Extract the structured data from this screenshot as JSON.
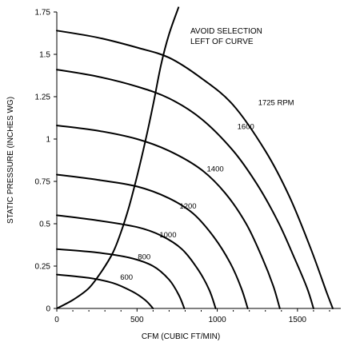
{
  "chart_data": {
    "type": "line",
    "title": "",
    "xlabel": "CFM (CUBIC FT/MIN)",
    "ylabel": "STATIC PRESSURE (INCHES WG)",
    "xlim": [
      0,
      1770
    ],
    "ylim": [
      0,
      1.75
    ],
    "x_ticks": [
      0,
      500,
      1000,
      1500
    ],
    "y_ticks": [
      0,
      0.25,
      0.5,
      0.75,
      1,
      1.25,
      1.5,
      1.75
    ],
    "y_tick_labels": [
      "0",
      "0.25",
      "0.5",
      "0.75",
      "1",
      "1.25",
      "1.5",
      "1.75"
    ],
    "x_minor_ticks": [
      100,
      200,
      300,
      400,
      600,
      700,
      800,
      900,
      1100,
      1200,
      1300,
      1400,
      1600,
      1700
    ],
    "grid": false,
    "legend": "none",
    "colors": {
      "line": "#000000",
      "background": "#ffffff"
    },
    "annotation": [
      "AVOID SELECTION",
      "LEFT OF CURVE"
    ],
    "series": [
      {
        "name": "1725 RPM",
        "points": [
          [
            0,
            1.64
          ],
          [
            250,
            1.6
          ],
          [
            500,
            1.54
          ],
          [
            700,
            1.48
          ],
          [
            900,
            1.36
          ],
          [
            1100,
            1.2
          ],
          [
            1300,
            0.93
          ],
          [
            1450,
            0.66
          ],
          [
            1580,
            0.36
          ],
          [
            1680,
            0.1
          ],
          [
            1720,
            0
          ]
        ]
      },
      {
        "name": "1600",
        "points": [
          [
            0,
            1.41
          ],
          [
            250,
            1.37
          ],
          [
            500,
            1.31
          ],
          [
            700,
            1.24
          ],
          [
            900,
            1.12
          ],
          [
            1100,
            0.93
          ],
          [
            1250,
            0.73
          ],
          [
            1380,
            0.51
          ],
          [
            1480,
            0.3
          ],
          [
            1560,
            0.12
          ],
          [
            1600,
            0
          ]
        ]
      },
      {
        "name": "1400",
        "points": [
          [
            0,
            1.08
          ],
          [
            250,
            1.05
          ],
          [
            500,
            1.0
          ],
          [
            700,
            0.93
          ],
          [
            900,
            0.82
          ],
          [
            1050,
            0.68
          ],
          [
            1180,
            0.5
          ],
          [
            1280,
            0.3
          ],
          [
            1350,
            0.13
          ],
          [
            1390,
            0
          ]
        ]
      },
      {
        "name": "1200",
        "points": [
          [
            0,
            0.79
          ],
          [
            250,
            0.76
          ],
          [
            500,
            0.72
          ],
          [
            700,
            0.65
          ],
          [
            850,
            0.56
          ],
          [
            980,
            0.42
          ],
          [
            1080,
            0.27
          ],
          [
            1150,
            0.12
          ],
          [
            1190,
            0
          ]
        ]
      },
      {
        "name": "1000",
        "points": [
          [
            0,
            0.55
          ],
          [
            250,
            0.52
          ],
          [
            500,
            0.48
          ],
          [
            650,
            0.43
          ],
          [
            780,
            0.35
          ],
          [
            880,
            0.23
          ],
          [
            950,
            0.11
          ],
          [
            990,
            0
          ]
        ]
      },
      {
        "name": "800",
        "points": [
          [
            0,
            0.35
          ],
          [
            250,
            0.33
          ],
          [
            450,
            0.3
          ],
          [
            600,
            0.25
          ],
          [
            700,
            0.17
          ],
          [
            760,
            0.08
          ],
          [
            795,
            0
          ]
        ]
      },
      {
        "name": "600",
        "points": [
          [
            0,
            0.2
          ],
          [
            200,
            0.18
          ],
          [
            350,
            0.15
          ],
          [
            470,
            0.1
          ],
          [
            550,
            0.05
          ],
          [
            600,
            0
          ]
        ]
      }
    ],
    "series_label_anchors": [
      [
        1255,
        1.2
      ],
      [
        1125,
        1.06
      ],
      [
        935,
        0.81
      ],
      [
        765,
        0.59
      ],
      [
        640,
        0.42
      ],
      [
        505,
        0.29
      ],
      [
        395,
        0.17
      ]
    ],
    "selection_curve": {
      "name": "AVOID SELECTION LEFT OF CURVE",
      "points": [
        [
          0,
          0
        ],
        [
          100,
          0.05
        ],
        [
          200,
          0.12
        ],
        [
          280,
          0.22
        ],
        [
          350,
          0.33
        ],
        [
          400,
          0.45
        ],
        [
          450,
          0.6
        ],
        [
          500,
          0.78
        ],
        [
          550,
          0.98
        ],
        [
          600,
          1.2
        ],
        [
          650,
          1.44
        ],
        [
          700,
          1.62
        ],
        [
          760,
          1.78
        ]
      ]
    }
  }
}
